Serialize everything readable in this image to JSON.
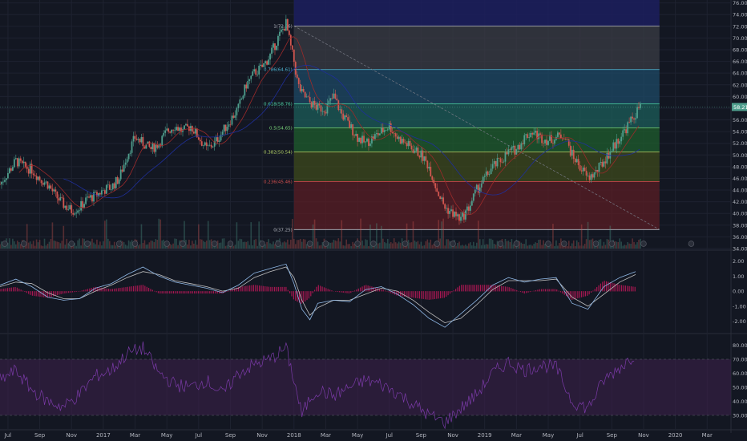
{
  "colors": {
    "bg": "#131722",
    "grid": "#1e2230",
    "up": "#4f9e8d",
    "down": "#d2564f",
    "text": "#b2b5be",
    "sma_fast": "#9b2a2a",
    "sma_slow": "#1f2f9a",
    "macd": "#8fb8e6",
    "signal": "#c0c0c0",
    "hist": "#c2185b",
    "rsi": "#7b3aa8",
    "rsi_band": "#3a1f4a",
    "fib_line": "#787b86",
    "badge": "#2a2e39"
  },
  "chart_data": [
    {
      "type": "line",
      "panel": "price",
      "title": "",
      "x_tick_labels": [
        "Jul",
        "Sep",
        "Nov",
        "2017",
        "Mar",
        "May",
        "Jul",
        "Sep",
        "Nov",
        "2018",
        "Mar",
        "May",
        "Jul",
        "Sep",
        "Nov",
        "2019",
        "Mar",
        "May",
        "Jul",
        "Sep",
        "Nov",
        "2020",
        "Mar"
      ],
      "x_tick_positions": [
        0.5,
        2.5,
        4.5,
        6.5,
        8.5,
        10.5,
        12.5,
        14.5,
        16.5,
        18.5,
        20.5,
        22.5,
        24.5,
        26.5,
        28.5,
        30.5,
        32.5,
        34.5,
        36.5,
        38.5,
        40.5,
        42.5,
        44.5
      ],
      "y_ticks": [
        "34.00",
        "36.00",
        "38.00",
        "40.00",
        "42.00",
        "44.00",
        "46.00",
        "48.00",
        "50.00",
        "52.00",
        "54.00",
        "56.00",
        "58.00",
        "60.00",
        "62.00",
        "64.00",
        "66.00",
        "68.00",
        "70.00",
        "72.00",
        "74.00",
        "76.00"
      ],
      "ylim": [
        34,
        76.5
      ],
      "last_price": "58.21",
      "series": [
        {
          "x": [
            0,
            0.5,
            1,
            1.5,
            2,
            2.5,
            3,
            3.5,
            4,
            4.5,
            5,
            5.5,
            6,
            6.5,
            7,
            7.5,
            8,
            8.5,
            9,
            9.5,
            10,
            10.5,
            11,
            11.5,
            12,
            12.5,
            13,
            13.5,
            14,
            14.5,
            15,
            15.5,
            16,
            16.5,
            17,
            17.5,
            18,
            18.25,
            18.5,
            18.75,
            19,
            19.5,
            20,
            20.5,
            21,
            21.5,
            22,
            22.5,
            23,
            23.5,
            24,
            24.5,
            25,
            25.5,
            26,
            26.5,
            27,
            27.5,
            28,
            28.5,
            29,
            29.5,
            30,
            30.5,
            31,
            31.5,
            32,
            32.5,
            33,
            33.5,
            34,
            34.5,
            35,
            35.5,
            36,
            36.5,
            37,
            37.5,
            38,
            38.5,
            39,
            39.5,
            40,
            40.4
          ],
          "values": [
            45,
            47,
            49,
            48,
            47.5,
            46,
            45,
            43,
            41.5,
            40.5,
            41,
            42.5,
            43,
            44,
            44.5,
            46,
            50,
            53,
            52,
            51,
            52,
            54,
            55,
            54,
            55,
            53,
            51,
            52,
            54,
            56,
            58,
            62,
            64,
            65,
            67,
            70,
            72.5,
            69,
            66,
            62,
            60.5,
            59,
            58,
            58,
            60,
            57,
            55,
            53,
            52,
            53,
            54,
            55,
            53,
            52,
            51,
            50,
            48,
            44,
            41,
            40,
            39,
            41,
            44,
            46,
            48,
            49,
            50.5,
            51,
            53,
            54,
            53,
            52.5,
            53,
            53.5,
            50,
            48,
            46,
            47,
            49,
            51,
            53,
            55,
            57,
            59
          ],
          "name": ""
        }
      ],
      "fibonacci": {
        "levels": [
          {
            "ratio": "1",
            "value": 72.06,
            "label": "1(72.06)"
          },
          {
            "ratio": "0.786",
            "value": 64.61,
            "label": "0.786(64.61)"
          },
          {
            "ratio": "0.618",
            "value": 58.76,
            "label": "0.618(58.76)"
          },
          {
            "ratio": "0.5",
            "value": 54.65,
            "label": "0.5(54.65)"
          },
          {
            "ratio": "0.382",
            "value": 50.54,
            "label": "0.382(50.54)"
          },
          {
            "ratio": "0.236",
            "value": 45.46,
            "label": "0.236(45.46)"
          },
          {
            "ratio": "0",
            "value": 37.25,
            "label": "0(37.25)"
          }
        ],
        "fill_colors": [
          "#1c1e5e",
          "#3a3c44",
          "#1e4a66",
          "#1c5e5a",
          "#1f5e2e",
          "#3e4a1c",
          "#5a1e24"
        ],
        "label_colors": [
          "#b2b5be",
          "#4fb8d6",
          "#4fd6a8",
          "#7ad67a",
          "#b8d66a",
          "#d6504f",
          "#b2b5be"
        ]
      }
    },
    {
      "type": "line",
      "panel": "macd",
      "y_ticks": [
        "-2.00",
        "-1.00",
        "0.00",
        "1.00",
        "2.00"
      ],
      "ylim": [
        -2.6,
        2.4
      ],
      "series": [
        {
          "name": "",
          "x": [
            0,
            1,
            2,
            3,
            4,
            5,
            6,
            7,
            8,
            9,
            10,
            11,
            12,
            13,
            14,
            15,
            16,
            17,
            18,
            18.5,
            19,
            19.5,
            20,
            21,
            22,
            23,
            24,
            25,
            26,
            27,
            28,
            29,
            30,
            31,
            32,
            33,
            34,
            35,
            36,
            37,
            38,
            39,
            40
          ],
          "values": [
            0.4,
            0.8,
            0.3,
            -0.4,
            -0.6,
            -0.5,
            0.2,
            0.5,
            1.1,
            1.6,
            1.0,
            0.6,
            0.4,
            0.2,
            -0.1,
            0.4,
            1.2,
            1.5,
            1.8,
            0.5,
            -1.2,
            -1.9,
            -0.8,
            -0.6,
            -0.7,
            0.1,
            0.3,
            -0.2,
            -0.9,
            -1.8,
            -2.4,
            -1.5,
            -0.6,
            0.4,
            0.9,
            0.6,
            0.8,
            0.9,
            -0.8,
            -1.2,
            0.3,
            0.9,
            1.3
          ]
        },
        {
          "name": "",
          "x": [
            0,
            1,
            2,
            3,
            4,
            5,
            6,
            7,
            8,
            9,
            10,
            11,
            12,
            13,
            14,
            15,
            16,
            17,
            18,
            18.5,
            19,
            19.5,
            20,
            21,
            22,
            23,
            24,
            25,
            26,
            27,
            28,
            29,
            30,
            31,
            32,
            33,
            34,
            35,
            36,
            37,
            38,
            39,
            40
          ],
          "values": [
            0.3,
            0.6,
            0.5,
            -0.1,
            -0.5,
            -0.5,
            0.0,
            0.4,
            0.9,
            1.3,
            1.1,
            0.7,
            0.5,
            0.3,
            0.0,
            0.2,
            0.9,
            1.3,
            1.6,
            0.9,
            -0.6,
            -1.6,
            -1.1,
            -0.6,
            -0.6,
            -0.2,
            0.2,
            0.0,
            -0.6,
            -1.4,
            -2.1,
            -1.8,
            -0.9,
            0.1,
            0.7,
            0.7,
            0.7,
            0.8,
            -0.4,
            -1.0,
            -0.2,
            0.6,
            1.1
          ]
        }
      ]
    },
    {
      "type": "line",
      "panel": "rsi",
      "y_ticks": [
        "30.00",
        "40.00",
        "50.00",
        "60.00",
        "70.00",
        "80.00"
      ],
      "ylim": [
        22,
        86
      ],
      "band": [
        30,
        70
      ],
      "series": [
        {
          "name": "",
          "x": [
            0,
            1,
            2,
            3,
            4,
            5,
            6,
            7,
            8,
            9,
            10,
            11,
            12,
            13,
            14,
            15,
            16,
            17,
            18,
            18.5,
            19,
            19.5,
            20,
            21,
            22,
            23,
            24,
            25,
            26,
            27,
            28,
            29,
            30,
            31,
            32,
            33,
            34,
            35,
            36,
            37,
            38,
            39,
            40
          ],
          "values": [
            55,
            62,
            48,
            40,
            36,
            45,
            58,
            62,
            74,
            78,
            60,
            52,
            50,
            55,
            45,
            60,
            66,
            70,
            78,
            55,
            30,
            42,
            48,
            44,
            50,
            55,
            52,
            46,
            38,
            30,
            25,
            35,
            45,
            60,
            68,
            62,
            66,
            64,
            40,
            35,
            55,
            64,
            74
          ]
        }
      ]
    }
  ]
}
